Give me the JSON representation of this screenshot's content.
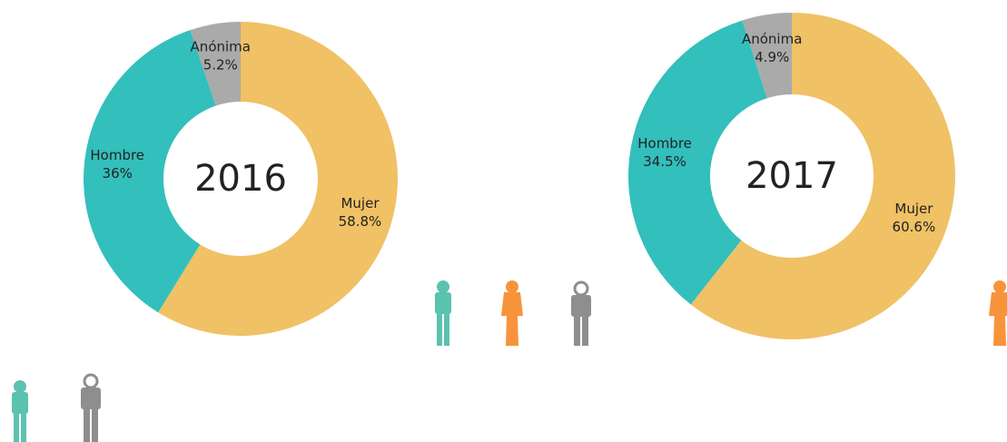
{
  "chart_data": [
    {
      "type": "pie",
      "title": "2016",
      "categories": [
        "Mujer",
        "Hombre",
        "Anónima"
      ],
      "values": [
        58.8,
        36,
        5.2
      ],
      "value_labels": [
        "58.8%",
        "36%",
        "5.2%"
      ],
      "colors": [
        "#f0c165",
        "#33bfbc",
        "#aaaaaa"
      ],
      "donut": true
    },
    {
      "type": "pie",
      "title": "2017",
      "categories": [
        "Mujer",
        "Hombre",
        "Anónima"
      ],
      "values": [
        60.6,
        34.5,
        4.9
      ],
      "value_labels": [
        "60.6%",
        "34.5%",
        "4.9%"
      ],
      "colors": [
        "#f0c165",
        "#33bfbc",
        "#aaaaaa"
      ],
      "donut": true
    }
  ]
}
